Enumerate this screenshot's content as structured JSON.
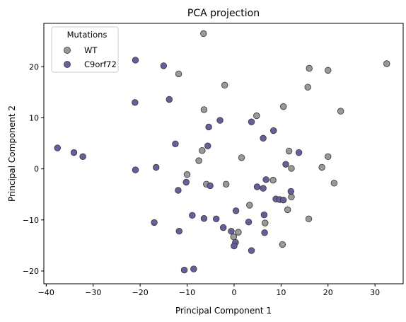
{
  "chart_data": {
    "type": "scatter",
    "title": "PCA projection",
    "xlabel": "Principal Component 1",
    "ylabel": "Principal Component 2",
    "xlim": [
      -40.5,
      36
    ],
    "ylim": [
      -22.5,
      28.5
    ],
    "xticks": [
      -40,
      -30,
      -20,
      -10,
      0,
      10,
      20,
      30
    ],
    "yticks": [
      -20,
      -10,
      0,
      10,
      20
    ],
    "grid": false,
    "legend": {
      "title": "Mutations",
      "placement": "top-left"
    },
    "series": [
      {
        "name": "WT",
        "color": "#999999",
        "points": [
          [
            -6.5,
            26.5
          ],
          [
            -11.8,
            18.6
          ],
          [
            -2.0,
            16.4
          ],
          [
            -6.4,
            11.6
          ],
          [
            4.8,
            10.4
          ],
          [
            10.5,
            12.2
          ],
          [
            15.7,
            16.0
          ],
          [
            16.0,
            19.7
          ],
          [
            20.0,
            19.3
          ],
          [
            22.7,
            11.3
          ],
          [
            32.5,
            20.6
          ],
          [
            -6.8,
            3.6
          ],
          [
            -7.5,
            1.6
          ],
          [
            -10.0,
            -1.1
          ],
          [
            -5.9,
            -3.0
          ],
          [
            -1.7,
            -3.0
          ],
          [
            1.6,
            2.2
          ],
          [
            11.7,
            3.5
          ],
          [
            12.2,
            0.1
          ],
          [
            18.7,
            0.3
          ],
          [
            20.0,
            2.4
          ],
          [
            21.3,
            -2.8
          ],
          [
            8.3,
            -2.2
          ],
          [
            12.2,
            -5.5
          ],
          [
            11.4,
            -8.0
          ],
          [
            15.9,
            -9.8
          ],
          [
            10.3,
            -14.8
          ],
          [
            6.6,
            -10.6
          ],
          [
            3.3,
            -7.1
          ],
          [
            0.9,
            -12.4
          ],
          [
            -0.1,
            -13.3
          ]
        ]
      },
      {
        "name": "C9orf72",
        "color": "#66609a",
        "points": [
          [
            -37.6,
            4.1
          ],
          [
            -34.1,
            3.2
          ],
          [
            -32.2,
            2.4
          ],
          [
            -21.0,
            21.3
          ],
          [
            -21.1,
            13.0
          ],
          [
            -15.0,
            20.2
          ],
          [
            -13.8,
            13.6
          ],
          [
            -21.0,
            -0.2
          ],
          [
            -16.6,
            0.3
          ],
          [
            -12.5,
            4.9
          ],
          [
            -5.4,
            8.2
          ],
          [
            -3.0,
            9.5
          ],
          [
            3.7,
            9.2
          ],
          [
            6.2,
            6.0
          ],
          [
            8.4,
            7.5
          ],
          [
            -5.6,
            4.5
          ],
          [
            -5.1,
            -3.3
          ],
          [
            -10.2,
            -2.6
          ],
          [
            -11.9,
            -4.2
          ],
          [
            -17.0,
            -10.5
          ],
          [
            -11.7,
            -12.2
          ],
          [
            -8.9,
            -9.1
          ],
          [
            -6.4,
            -9.7
          ],
          [
            -3.8,
            -9.8
          ],
          [
            0.4,
            -8.2
          ],
          [
            -2.3,
            -11.5
          ],
          [
            -0.6,
            -12.2
          ],
          [
            3.1,
            -10.4
          ],
          [
            6.5,
            -12.5
          ],
          [
            6.4,
            -9.0
          ],
          [
            0.3,
            -14.4
          ],
          [
            0.0,
            -15.1
          ],
          [
            3.7,
            -16.0
          ],
          [
            4.9,
            -3.5
          ],
          [
            6.2,
            -3.8
          ],
          [
            6.8,
            -2.1
          ],
          [
            8.9,
            -5.9
          ],
          [
            9.7,
            -6.0
          ],
          [
            10.5,
            -6.1
          ],
          [
            12.1,
            -4.4
          ],
          [
            13.8,
            3.2
          ],
          [
            11.0,
            0.9
          ],
          [
            -10.6,
            -19.8
          ],
          [
            -8.6,
            -19.6
          ]
        ]
      }
    ]
  }
}
